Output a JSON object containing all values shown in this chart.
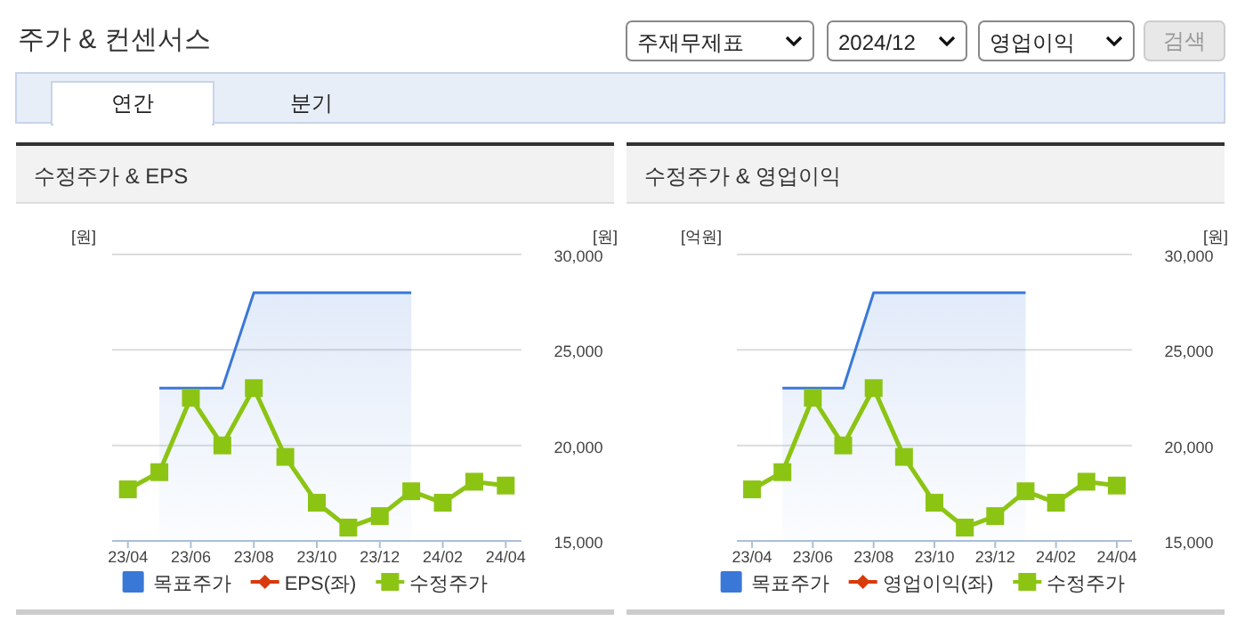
{
  "chart_data": [
    {
      "type": "other",
      "title": "주가 & 컨센서스",
      "annotations": [
        "주재무제표",
        "2024/12",
        "영업이익",
        "검색",
        "연간",
        "분기"
      ]
    },
    {
      "type": "line",
      "title": "수정주가 & EPS",
      "ylabel": "[원]",
      "y2label": "[원]",
      "categories": [
        "23/04",
        null,
        "23/06",
        null,
        "23/08",
        null,
        "23/10",
        null,
        "23/12",
        null,
        "24/02",
        null,
        "24/04"
      ],
      "series": [
        {
          "name": "목표주가",
          "type": "area",
          "axis": "y2",
          "color": "#3a78d8",
          "values": [
            null,
            23000,
            23000,
            23000,
            28000,
            28000,
            28000,
            28000,
            28000,
            28000,
            null,
            null,
            null
          ]
        },
        {
          "name": "EPS(좌)",
          "type": "line",
          "axis": "y",
          "color": "#d83a0a",
          "marker": "diamond",
          "values": [
            null,
            null,
            null,
            null,
            null,
            null,
            null,
            null,
            null,
            null,
            null,
            null,
            null
          ]
        },
        {
          "name": "수정주가",
          "type": "line",
          "axis": "y2",
          "color": "#8cc414",
          "marker": "square",
          "values": [
            17700,
            18600,
            22500,
            20000,
            23000,
            19400,
            17000,
            15700,
            16300,
            17600,
            17000,
            18100,
            17900
          ]
        }
      ],
      "y2lim": [
        15000,
        30000
      ],
      "y2ticks": [
        {
          "value": 15000,
          "label": "15,000"
        },
        {
          "value": 20000,
          "label": "20,000"
        },
        {
          "value": 25000,
          "label": "25,000"
        },
        {
          "value": 30000,
          "label": "30,000"
        }
      ],
      "grid": "y",
      "legend": "bottom"
    },
    {
      "type": "line",
      "title": "수정주가 & 영업이익",
      "ylabel": "[억원]",
      "y2label": "[원]",
      "categories": [
        "23/04",
        null,
        "23/06",
        null,
        "23/08",
        null,
        "23/10",
        null,
        "23/12",
        null,
        "24/02",
        null,
        "24/04"
      ],
      "series": [
        {
          "name": "목표주가",
          "type": "area",
          "axis": "y2",
          "color": "#3a78d8",
          "values": [
            null,
            23000,
            23000,
            23000,
            28000,
            28000,
            28000,
            28000,
            28000,
            28000,
            null,
            null,
            null
          ]
        },
        {
          "name": "영업이익(좌)",
          "type": "line",
          "axis": "y",
          "color": "#d83a0a",
          "marker": "diamond",
          "values": [
            null,
            null,
            null,
            null,
            null,
            null,
            null,
            null,
            null,
            null,
            null,
            null,
            null
          ]
        },
        {
          "name": "수정주가",
          "type": "line",
          "axis": "y2",
          "color": "#8cc414",
          "marker": "square",
          "values": [
            17700,
            18600,
            22500,
            20000,
            23000,
            19400,
            17000,
            15700,
            16300,
            17600,
            17000,
            18100,
            17900
          ]
        }
      ],
      "y2lim": [
        15000,
        30000
      ],
      "y2ticks": [
        {
          "value": 15000,
          "label": "15,000"
        },
        {
          "value": 20000,
          "label": "20,000"
        },
        {
          "value": 25000,
          "label": "25,000"
        },
        {
          "value": 30000,
          "label": "30,000"
        }
      ],
      "grid": "y",
      "legend": "bottom"
    }
  ]
}
